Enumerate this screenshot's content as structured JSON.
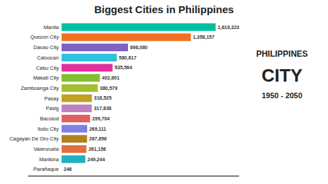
{
  "chart_data": {
    "type": "bar",
    "orientation": "horizontal",
    "title": "Biggest Cities in Philippines",
    "annotations": [
      "PHILIPPINES",
      "CITY",
      "1950 - 2050"
    ],
    "categories": [
      "Manila",
      "Quezon City",
      "Davao City",
      "Caloocan",
      "Cebu City",
      "Makati City",
      "Zamboanga City",
      "Pasay",
      "Pasig",
      "Bacolod",
      "Iloilo City",
      "Cagayan De Oro City",
      "Valenzuela",
      "Marikina",
      "Parañaque"
    ],
    "values": [
      1619323,
      1358157,
      698080,
      580617,
      535564,
      402601,
      380579,
      318525,
      317838,
      299704,
      269111,
      267656,
      261156,
      249244,
      246
    ],
    "value_labels": [
      "1,619,323",
      "1,358,157",
      "698,080",
      "580,617",
      "535,564",
      "402,601",
      "380,579",
      "318,525",
      "317,838",
      "299,704",
      "269,111",
      "267,656",
      "261,156",
      "249,244",
      "246"
    ],
    "colors": [
      "#00c0a0",
      "#f07020",
      "#8060c0",
      "#30c0e0",
      "#e030a0",
      "#80c030",
      "#a0c030",
      "#c0a020",
      "#c080c0",
      "#e06060",
      "#8080e0",
      "#b08020",
      "#e07040",
      "#20b0c0",
      "#30c0a0"
    ],
    "xlim": [
      -356251.06,
      1862221.45
    ],
    "data_labels": true,
    "tick_labels": false,
    "grid": false
  }
}
